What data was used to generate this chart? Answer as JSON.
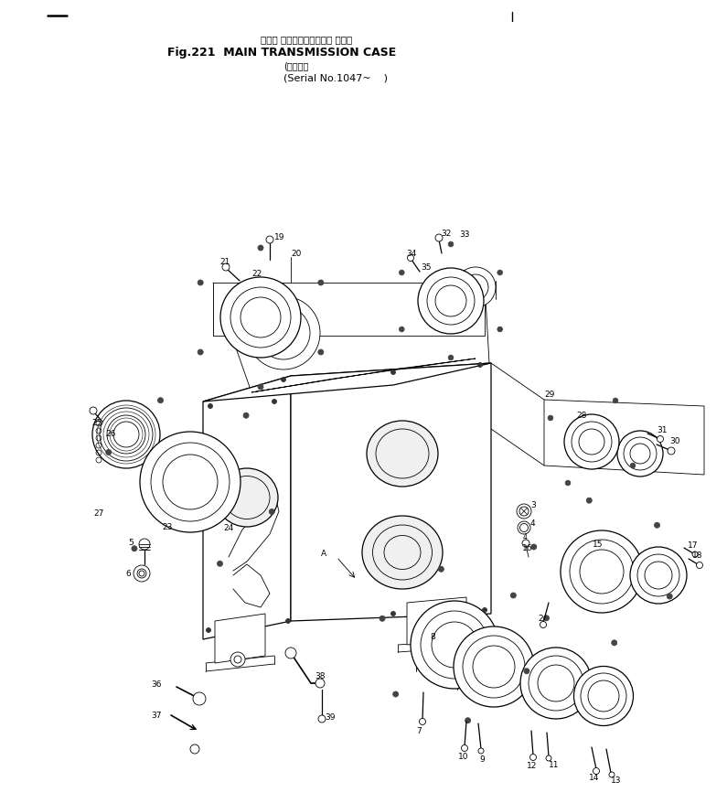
{
  "title_jp": "メイン トランスミッション ケース",
  "title_en": "Fig.221  MAIN TRANSMISSION CASE",
  "serial_jp": "(適用号機",
  "serial_en": "(Serial No.1047~    )",
  "bg_color": "#ffffff",
  "lc": "#000000",
  "fig_width": 7.95,
  "fig_height": 8.79,
  "dpi": 100
}
